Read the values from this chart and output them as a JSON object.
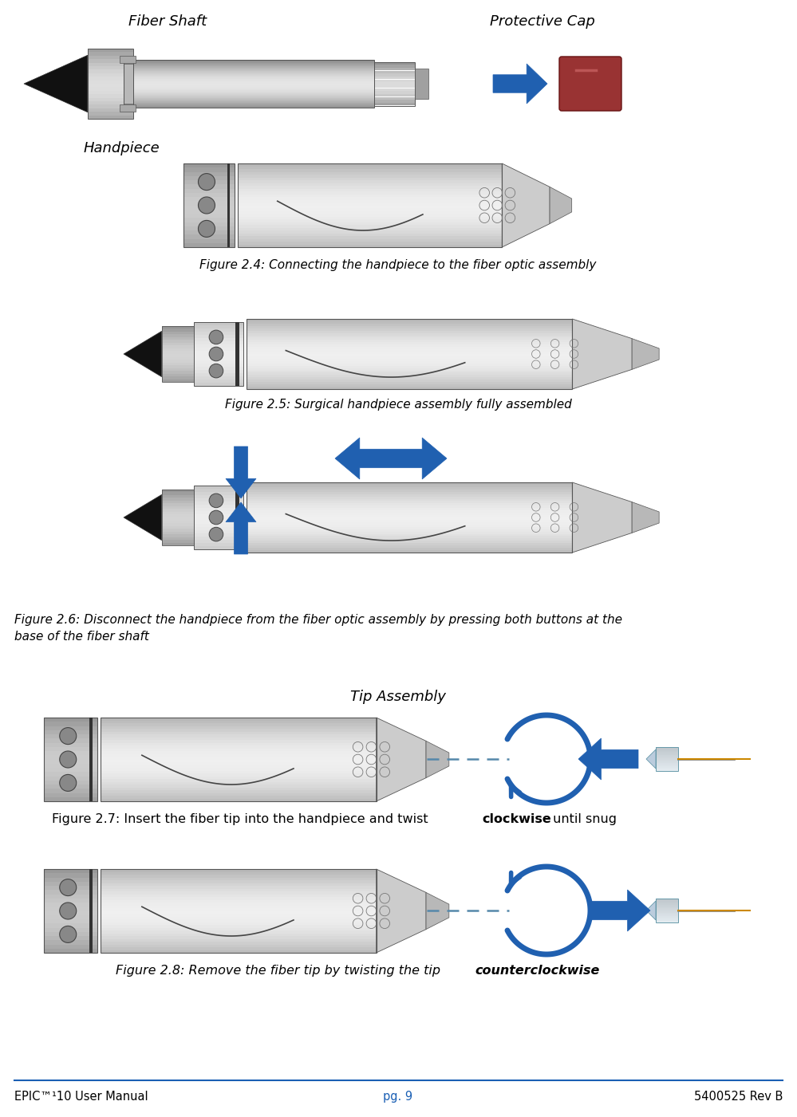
{
  "bg_color": "#ffffff",
  "page_width": 9.99,
  "page_height": 14.01,
  "footer_text_left": "EPIC™¹10 User Manual",
  "footer_text_center": "pg. 9",
  "footer_text_right": "5400525 Rev B",
  "footer_color": "#1a5fb4",
  "label_fiber_shaft": "Fiber Shaft",
  "label_protective_cap": "Protective Cap",
  "label_handpiece": "Handpiece",
  "label_tip_assembly": "Tip Assembly",
  "fig24_caption": "Figure 2.4: Connecting the handpiece to the fiber optic assembly",
  "fig25_caption": "Figure 2.5: Surgical handpiece assembly fully assembled",
  "fig26_caption": "Figure 2.6: Disconnect the handpiece from the fiber optic assembly by pressing both buttons at the\nbase of the fiber shaft",
  "fig27_pre": "Figure 2.7: Insert the fiber tip into the handpiece and twist ",
  "fig27_bold": "clockwise",
  "fig27_post": " until snug",
  "fig28_pre": "Figure 2.8: Remove the fiber tip by twisting the tip ",
  "fig28_bold": "counterclockwise",
  "blue_color": "#2060b0",
  "silver_light": "#e0e0e0",
  "silver_mid": "#c0c0c0",
  "silver_dark": "#909090",
  "black_tip": "#1a1a1a",
  "red_cap": "#993333",
  "orange_fiber": "#cc8800"
}
